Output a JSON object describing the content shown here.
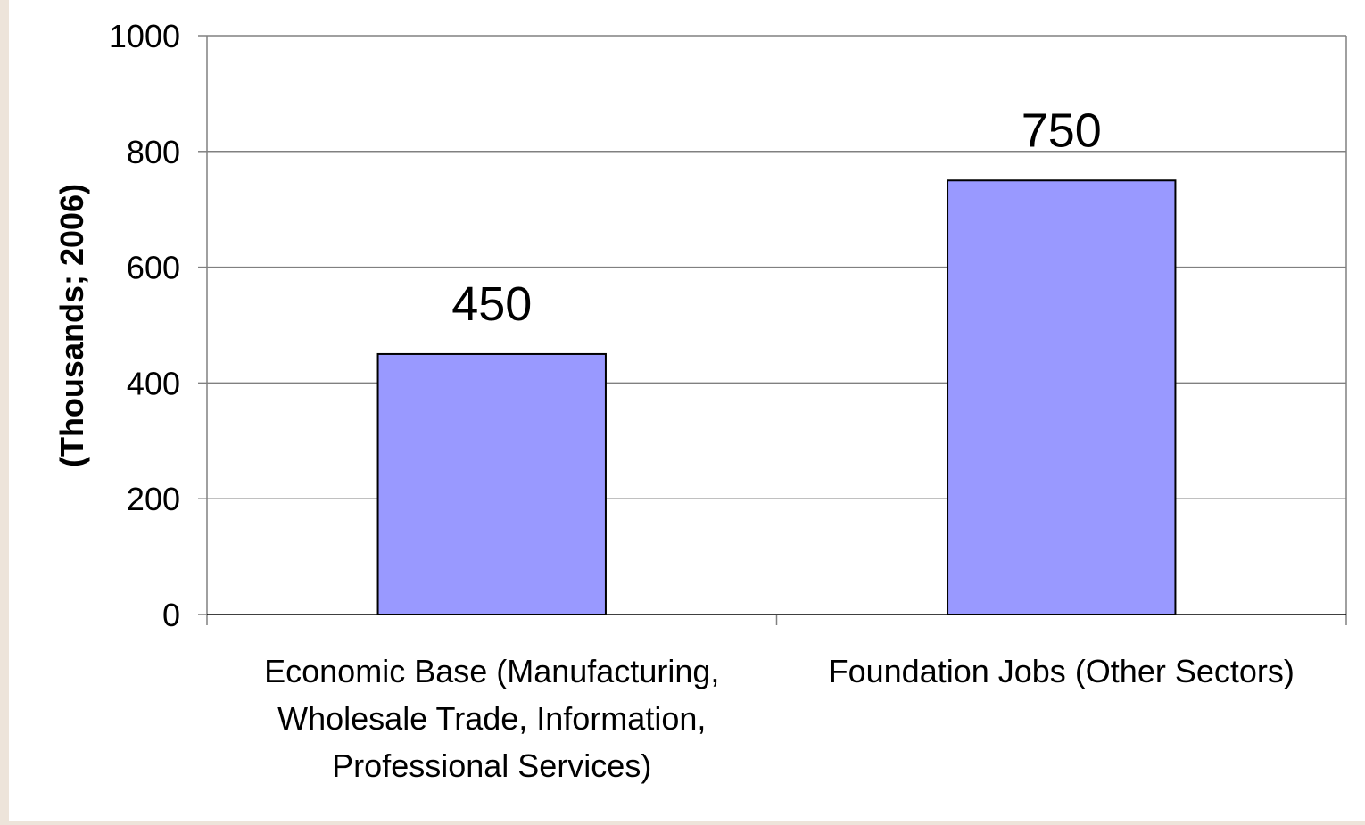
{
  "chart_data": {
    "type": "bar",
    "title": "",
    "xlabel": "",
    "ylabel": "(Thousands; 2006)",
    "ylim": [
      0,
      1000
    ],
    "yticks": [
      0,
      200,
      400,
      600,
      800,
      1000
    ],
    "ytick_labels": [
      "0",
      "200",
      "400",
      "600",
      "800",
      "1000"
    ],
    "grid": true,
    "categories": [
      [
        "Economic Base (Manufacturing,",
        "Wholesale Trade, Information,",
        "Professional Services)"
      ],
      [
        "Foundation Jobs (Other Sectors)"
      ]
    ],
    "values": [
      450,
      750
    ],
    "data_labels": [
      "450",
      "750"
    ],
    "colors": {
      "bar_fill": "#9999ff",
      "bar_stroke": "#000000",
      "gridline": "#808080",
      "axis": "#808080",
      "page_border": "#ede4da"
    }
  }
}
